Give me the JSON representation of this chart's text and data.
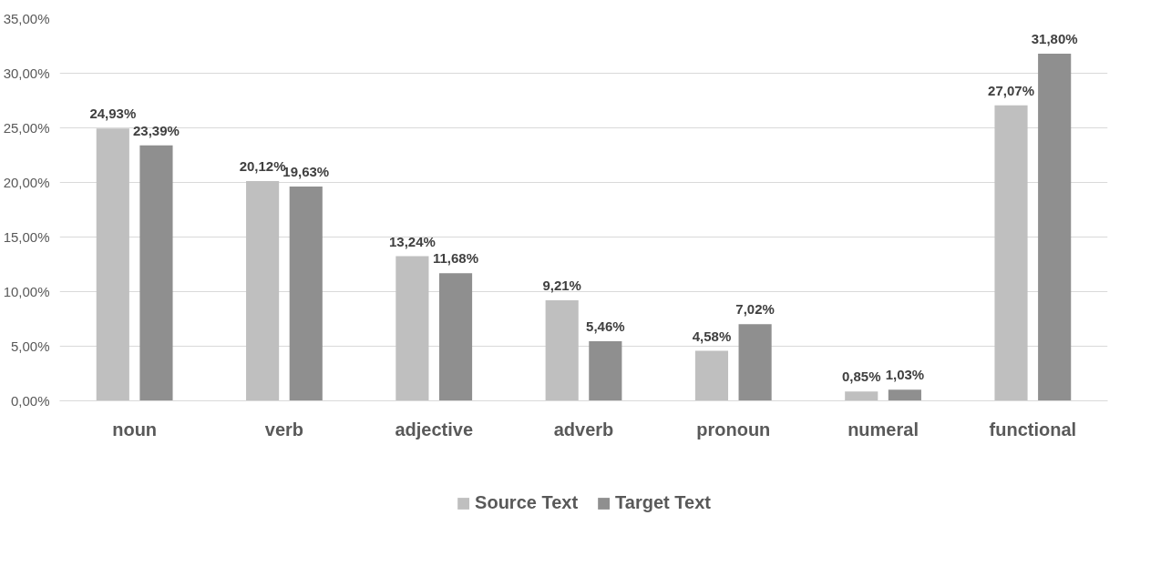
{
  "chart_data": {
    "type": "bar",
    "categories": [
      "noun",
      "verb",
      "adjective",
      "adverb",
      "pronoun",
      "numeral",
      "functional"
    ],
    "series": [
      {
        "name": "Source Text",
        "color": "#bfbfbf",
        "values": [
          24.93,
          20.12,
          13.24,
          9.21,
          4.58,
          0.85,
          27.07
        ],
        "value_labels": [
          "24,93%",
          "20,12%",
          "13,24%",
          "9,21%",
          "4,58%",
          "0,85%",
          "27,07%"
        ]
      },
      {
        "name": "Target Text",
        "color": "#8f8f8f",
        "values": [
          23.39,
          19.63,
          11.68,
          5.46,
          7.02,
          1.03,
          31.8
        ],
        "value_labels": [
          "23,39%",
          "19,63%",
          "11,68%",
          "5,46%",
          "7,02%",
          "1,03%",
          "31,80%"
        ]
      }
    ],
    "ylim": [
      0,
      35
    ],
    "yticks": [
      {
        "value": 0,
        "label": "0,00%"
      },
      {
        "value": 5,
        "label": "5,00%"
      },
      {
        "value": 10,
        "label": "10,00%"
      },
      {
        "value": 15,
        "label": "15,00%"
      },
      {
        "value": 20,
        "label": "20,00%"
      },
      {
        "value": 25,
        "label": "25,00%"
      },
      {
        "value": 30,
        "label": "30,00%"
      },
      {
        "value": 35,
        "label": "35,00%"
      }
    ],
    "grid": "y",
    "legend": "bottom"
  }
}
